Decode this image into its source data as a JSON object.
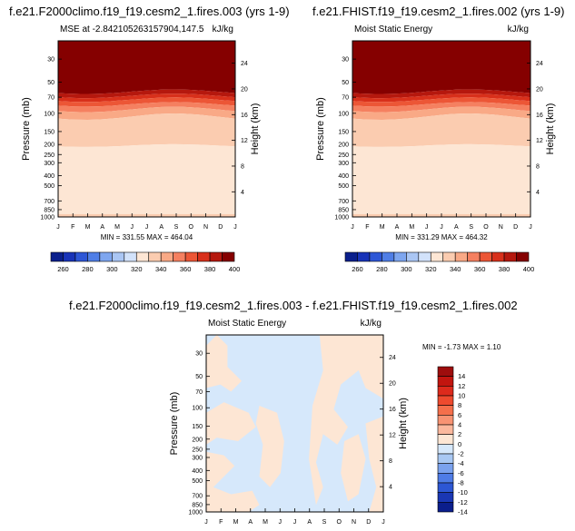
{
  "months": [
    "J",
    "F",
    "M",
    "A",
    "M",
    "J",
    "J",
    "A",
    "S",
    "O",
    "N",
    "D",
    "J"
  ],
  "pressure_ticks": [
    "30",
    "50",
    "70",
    "100",
    "150",
    "200",
    "250",
    "300",
    "400",
    "500",
    "700",
    "850",
    "1000"
  ],
  "pressure_tick_values": [
    30,
    50,
    70,
    100,
    150,
    200,
    250,
    300,
    400,
    500,
    700,
    850,
    1000
  ],
  "height_ticks": [
    "24",
    "20",
    "16",
    "12",
    "8",
    "4"
  ],
  "height_tick_values": [
    24,
    20,
    16,
    12,
    8,
    4
  ],
  "ylabel": "Pressure (mb)",
  "ylabel_right": "Height (km)",
  "panels": [
    {
      "title": "f.e21.F2000climo.f19_f19.cesm2_1.fires.003 (yrs 1-9)",
      "left_label": "MSE at -2.842105263157904,147.5",
      "right_label": "kJ/kg",
      "minmax": "MIN = 331.55 MAX = 464.04"
    },
    {
      "title": "f.e21.FHIST.f19_f19.cesm2_1.fires.002 (yrs 1-9)",
      "left_label": "Moist Static Energy",
      "right_label": "kJ/kg",
      "minmax": "MIN = 331.29 MAX = 464.32"
    },
    {
      "title": "f.e21.F2000climo.f19_f19.cesm2_1.fires.003 - f.e21.FHIST.f19_f19.cesm2_1.fires.002",
      "left_label": "Moist Static Energy",
      "right_label": "kJ/kg",
      "minmax": "MIN = -1.73 MAX =  1.10"
    }
  ],
  "colorbar_top": {
    "labels": [
      "260",
      "280",
      "300",
      "320",
      "340",
      "360",
      "380",
      "400"
    ],
    "colors": [
      "#0a1f8c",
      "#1833b8",
      "#2d56d6",
      "#4f7ee6",
      "#7ea6ef",
      "#aac6f4",
      "#d2e2fa",
      "#fde6d4",
      "#fbccb0",
      "#f9a986",
      "#f58060",
      "#ec5636",
      "#d8301b",
      "#b5180e",
      "#850000"
    ]
  },
  "colorbar_diff": {
    "labels": [
      "14",
      "12",
      "10",
      "8",
      "6",
      "4",
      "2",
      "0",
      "-2",
      "-4",
      "-6",
      "-8",
      "-10",
      "-12",
      "-14"
    ],
    "colors": [
      "#9e0d0d",
      "#c2150f",
      "#dd2a1c",
      "#ee4a2e",
      "#f56f4b",
      "#f89373",
      "#fbb89d",
      "#fde6d4",
      "#d6e8fb",
      "#a9c8f3",
      "#7ba2ee",
      "#4f7ce6",
      "#2d57d4",
      "#1a37b4",
      "#0b1e8c"
    ]
  },
  "chart_data": [
    {
      "type": "heatmap",
      "title": "f.e21.F2000climo.f19_f19.cesm2_1.fires.003 (yrs 1-9)",
      "subtitle": "MSE at -2.842105263157904,147.5",
      "units": "kJ/kg",
      "x": [
        "J",
        "F",
        "M",
        "A",
        "M",
        "J",
        "J",
        "A",
        "S",
        "O",
        "N",
        "D",
        "J"
      ],
      "y_scale": "log-pressure",
      "ylabel": "Pressure (mb)",
      "ylabel_right": "Height (km)",
      "ylim": [
        1000,
        20
      ],
      "levels": [
        260,
        270,
        280,
        290,
        300,
        310,
        320,
        330,
        340,
        350,
        360,
        370,
        380,
        390,
        400
      ],
      "min": 331.55,
      "max": 464.04
    },
    {
      "type": "heatmap",
      "title": "f.e21.FHIST.f19_f19.cesm2_1.fires.002 (yrs 1-9)",
      "subtitle": "Moist Static Energy",
      "units": "kJ/kg",
      "x": [
        "J",
        "F",
        "M",
        "A",
        "M",
        "J",
        "J",
        "A",
        "S",
        "O",
        "N",
        "D",
        "J"
      ],
      "y_scale": "log-pressure",
      "ylabel": "Pressure (mb)",
      "ylabel_right": "Height (km)",
      "ylim": [
        1000,
        20
      ],
      "levels": [
        260,
        270,
        280,
        290,
        300,
        310,
        320,
        330,
        340,
        350,
        360,
        370,
        380,
        390,
        400
      ],
      "min": 331.29,
      "max": 464.32
    },
    {
      "type": "heatmap",
      "title": "f.e21.F2000climo.f19_f19.cesm2_1.fires.003 - f.e21.FHIST.f19_f19.cesm2_1.fires.002",
      "subtitle": "Moist Static Energy",
      "units": "kJ/kg",
      "x": [
        "J",
        "F",
        "M",
        "A",
        "M",
        "J",
        "J",
        "A",
        "S",
        "O",
        "N",
        "D",
        "J"
      ],
      "y_scale": "log-pressure",
      "ylabel": "Pressure (mb)",
      "ylabel_right": "Height (km)",
      "ylim": [
        1000,
        20
      ],
      "levels": [
        -14,
        -12,
        -10,
        -8,
        -6,
        -4,
        -2,
        0,
        2,
        4,
        6,
        8,
        10,
        12,
        14
      ],
      "min": -1.73,
      "max": 1.1
    }
  ]
}
